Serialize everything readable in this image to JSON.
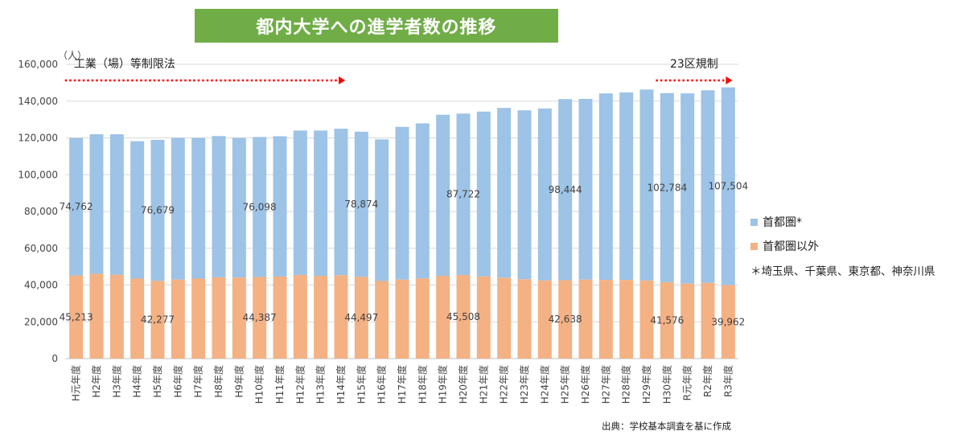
{
  "chart_data": {
    "type": "bar",
    "stacked": true,
    "title": "都内大学への進学者数の推移",
    "unit_label": "（人）",
    "categories": [
      "H元年度",
      "H2年度",
      "H3年度",
      "H4年度",
      "H5年度",
      "H6年度",
      "H7年度",
      "H8年度",
      "H9年度",
      "H10年度",
      "H11年度",
      "H12年度",
      "H13年度",
      "H14年度",
      "H15年度",
      "H16年度",
      "H17年度",
      "H18年度",
      "H19年度",
      "H20年度",
      "H21年度",
      "H22年度",
      "H23年度",
      "H24年度",
      "H25年度",
      "H26年度",
      "H27年度",
      "H28年度",
      "H29年度",
      "H30年度",
      "R元年度",
      "R2年度",
      "R3年度"
    ],
    "series": [
      {
        "name": "首都圏以外",
        "color": "#f4b183",
        "values": [
          45213,
          46100,
          45600,
          43500,
          42277,
          43000,
          43500,
          44200,
          44100,
          44387,
          44600,
          45500,
          45000,
          45400,
          44497,
          42200,
          43000,
          43600,
          45000,
          45508,
          44700,
          44000,
          43200,
          42500,
          42638,
          43000,
          42800,
          42800,
          42500,
          41576,
          40800,
          41200,
          39962
        ]
      },
      {
        "name": "首都圏*",
        "color": "#9dc3e6",
        "values": [
          74762,
          75900,
          76400,
          74700,
          76679,
          77000,
          76500,
          76800,
          75900,
          76098,
          76300,
          78500,
          79000,
          79600,
          78874,
          77000,
          83000,
          84300,
          87600,
          87722,
          89600,
          92300,
          91800,
          93500,
          98444,
          98200,
          101400,
          101900,
          103800,
          102784,
          103400,
          104700,
          107504
        ]
      }
    ],
    "data_labels": [
      {
        "index": 0,
        "bottom": "45,213",
        "top": "74,762"
      },
      {
        "index": 4,
        "bottom": "42,277",
        "top": "76,679"
      },
      {
        "index": 9,
        "bottom": "44,387",
        "top": "76,098"
      },
      {
        "index": 14,
        "bottom": "44,497",
        "top": "78,874"
      },
      {
        "index": 19,
        "bottom": "45,508",
        "top": "87,722"
      },
      {
        "index": 24,
        "bottom": "42,638",
        "top": "98,444"
      },
      {
        "index": 29,
        "bottom": "41,576",
        "top": "102,784"
      },
      {
        "index": 32,
        "bottom": "39,962",
        "top": "107,504"
      }
    ],
    "ylim": [
      0,
      160000
    ],
    "yticks": [
      0,
      20000,
      40000,
      60000,
      80000,
      100000,
      120000,
      140000,
      160000
    ],
    "ytick_labels": [
      "0",
      "20,000",
      "40,000",
      "60,000",
      "80,000",
      "100,000",
      "120,000",
      "140,000",
      "160,000"
    ],
    "grid": true,
    "annotations": [
      {
        "text": "工業（場）等制限法",
        "from_index": 0,
        "to_index": 13
      },
      {
        "text": "23区規制",
        "from_index": 29,
        "to_index": 32
      }
    ]
  },
  "legend": {
    "metro": "首都圏*",
    "non_metro": "首都圏以外"
  },
  "footnote": "＊埼玉県、千葉県、東京都、神奈川県",
  "source": "出典：学校基本調査を基に作成",
  "colors": {
    "metro": "#9dc3e6",
    "non_metro": "#f4b183",
    "banner": "#70ad47",
    "arrow": "#ff0000"
  }
}
